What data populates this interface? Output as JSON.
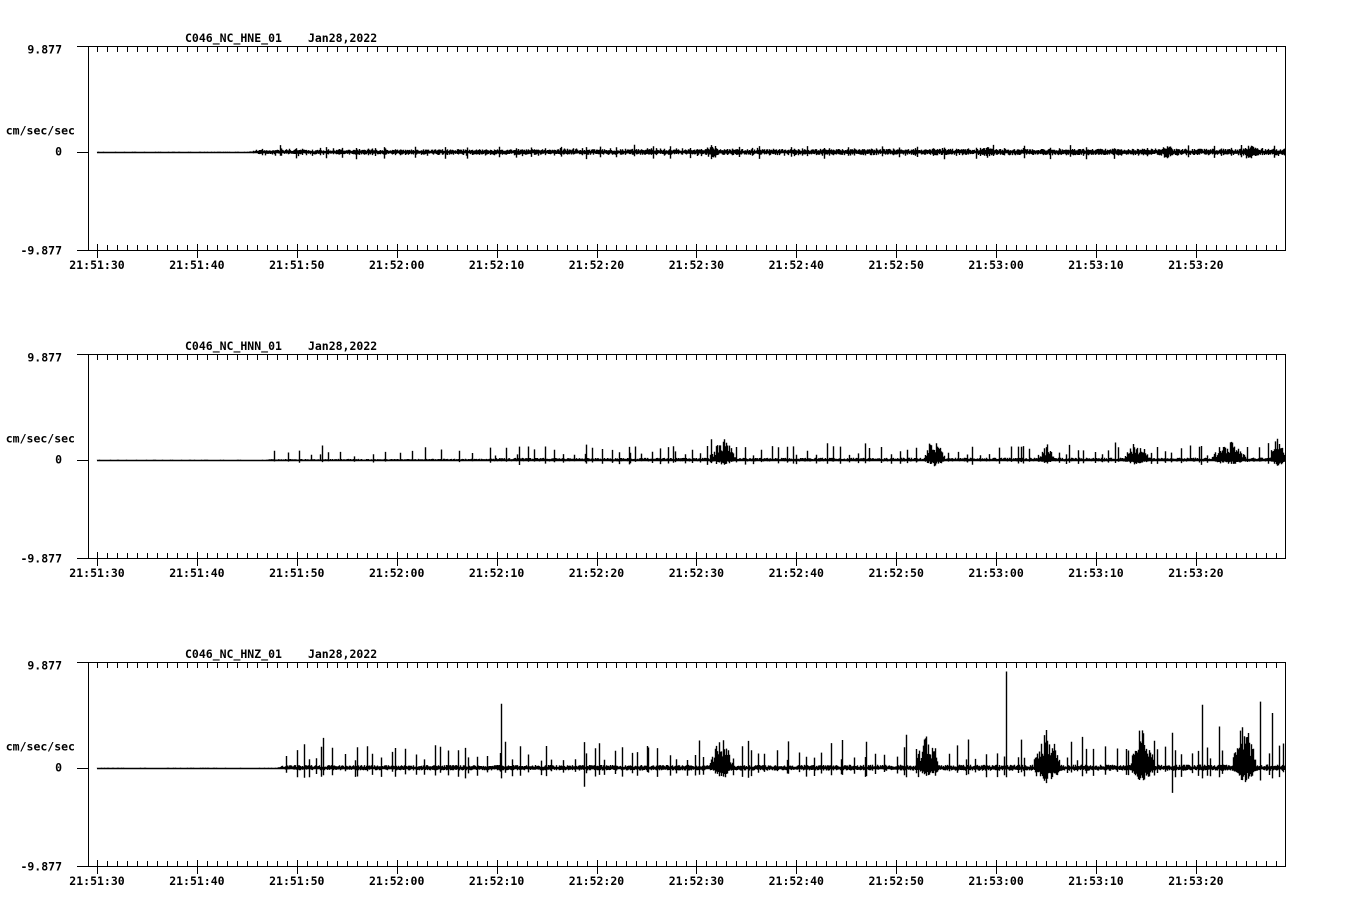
{
  "figure": {
    "bg": "#ffffff",
    "fg": "#000000",
    "description": "Three-channel strong-motion seismogram strip chart"
  },
  "chart_data": {
    "type": "line",
    "kind": "seismogram",
    "ylabel": "cm/sec/sec",
    "ylim": [
      -9.877,
      9.877
    ],
    "y_tick_labels": [
      "9.877",
      "0",
      "-9.877"
    ],
    "x_tick_labels": [
      "21:51:30",
      "21:51:40",
      "21:51:50",
      "21:52:00",
      "21:52:10",
      "21:52:20",
      "21:52:30",
      "21:52:40",
      "21:52:50",
      "21:53:00",
      "21:53:10",
      "21:53:20"
    ],
    "x_major_interval_sec": 10,
    "x_minor_interval_sec": 1,
    "grid": false,
    "legend": false,
    "panels": [
      {
        "title": "C046_NC_HNE_01",
        "date": "Jan28,2022",
        "units": "cm/sec/sec",
        "ymax_label": "9.877",
        "zero_label": "0",
        "ymin_label": "-9.877",
        "waveform": {
          "seed": 7,
          "trace_start_frac": 0.0075,
          "envelope": [
            [
              0,
              0.04,
              0.04
            ],
            [
              0.134,
              0.04,
              0.04
            ],
            [
              0.14,
              0.22,
              0.22
            ],
            [
              0.3,
              0.26,
              0.26
            ],
            [
              0.6,
              0.3,
              0.3
            ],
            [
              1,
              0.32,
              0.32
            ]
          ],
          "trains": [
            {
              "start": 0.145,
              "end": 1,
              "interval": 0.004,
              "up": [
                0.1,
                0.4
              ],
              "down": [
                0.1,
                0.4
              ]
            },
            {
              "start": 0.16,
              "end": 1,
              "interval": 0.02,
              "up": [
                0.35,
                0.7
              ],
              "down": [
                0.35,
                0.7
              ]
            }
          ],
          "bursts": [
            {
              "c": 0.52,
              "w": 0.015,
              "up": 0.7,
              "down": 0.7
            },
            {
              "c": 0.75,
              "w": 0.012,
              "up": 0.6,
              "down": 0.6
            },
            {
              "c": 0.9,
              "w": 0.015,
              "up": 0.7,
              "down": 0.7
            },
            {
              "c": 0.97,
              "w": 0.02,
              "up": 0.8,
              "down": 0.8
            }
          ],
          "events": []
        }
      },
      {
        "title": "C046_NC_HNN_01",
        "date": "Jan28,2022",
        "units": "cm/sec/sec",
        "ymax_label": "9.877",
        "zero_label": "0",
        "ymin_label": "-9.877",
        "waveform": {
          "seed": 11,
          "trace_start_frac": 0.0075,
          "envelope": [
            [
              0,
              0.04,
              0.04
            ],
            [
              0.147,
              0.04,
              0.04
            ],
            [
              0.152,
              0.1,
              0.08
            ],
            [
              0.33,
              0.12,
              0.1
            ],
            [
              0.34,
              0.2,
              0.14
            ],
            [
              1,
              0.24,
              0.16
            ]
          ],
          "trains": [
            {
              "start": 0.155,
              "end": 0.34,
              "interval": 0.011,
              "up": [
                0.3,
                1.3
              ],
              "down": [
                0.05,
                0.3
              ]
            },
            {
              "start": 0.34,
              "end": 1,
              "interval": 0.0075,
              "up": [
                0.4,
                1.4
              ],
              "down": [
                0.1,
                0.4
              ]
            },
            {
              "start": 0.36,
              "end": 1,
              "interval": 0.04,
              "up": [
                1.2,
                1.7
              ],
              "down": [
                0.2,
                0.5
              ]
            }
          ],
          "bursts": [
            {
              "c": 0.53,
              "w": 0.022,
              "up": 2.3,
              "down": 0.5
            },
            {
              "c": 0.706,
              "w": 0.018,
              "up": 2.4,
              "down": 0.6
            },
            {
              "c": 0.8,
              "w": 0.012,
              "up": 1.6,
              "down": 0.4
            },
            {
              "c": 0.875,
              "w": 0.022,
              "up": 1.9,
              "down": 0.5
            },
            {
              "c": 0.952,
              "w": 0.03,
              "up": 2.0,
              "down": 0.5
            },
            {
              "c": 0.993,
              "w": 0.012,
              "up": 2.3,
              "down": 0.6
            }
          ],
          "events": [
            {
              "f": 0.195,
              "up": 1.4,
              "down": 0.2
            },
            {
              "f": 0.52,
              "up": 2.0,
              "down": 0.3
            }
          ]
        }
      },
      {
        "title": "C046_NC_HNZ_01",
        "date": "Jan28,2022",
        "units": "cm/sec/sec",
        "ymax_label": "9.877",
        "zero_label": "0",
        "ymin_label": "-9.877",
        "waveform": {
          "seed": 23,
          "trace_start_frac": 0.0075,
          "envelope": [
            [
              0,
              0.04,
              0.04
            ],
            [
              0.157,
              0.04,
              0.04
            ],
            [
              0.163,
              0.28,
              0.22
            ],
            [
              0.5,
              0.3,
              0.25
            ],
            [
              1,
              0.34,
              0.28
            ]
          ],
          "trains": [
            {
              "start": 0.165,
              "end": 1,
              "interval": 0.008,
              "up": [
                0.7,
                2.2
              ],
              "down": [
                0.3,
                0.9
              ]
            },
            {
              "start": 0.18,
              "end": 1,
              "interval": 0.033,
              "up": [
                1.8,
                2.8
              ],
              "down": [
                0.4,
                1.0
              ]
            }
          ],
          "bursts": [
            {
              "c": 0.528,
              "w": 0.02,
              "up": 3.0,
              "down": 0.9
            },
            {
              "c": 0.7,
              "w": 0.02,
              "up": 3.4,
              "down": 1.1
            },
            {
              "c": 0.8,
              "w": 0.022,
              "up": 4.0,
              "down": 1.5
            },
            {
              "c": 0.88,
              "w": 0.02,
              "up": 4.3,
              "down": 1.5
            },
            {
              "c": 0.965,
              "w": 0.02,
              "up": 4.8,
              "down": 1.5
            }
          ],
          "events": [
            {
              "f": 0.196,
              "up": 2.9,
              "down": 0.7
            },
            {
              "f": 0.345,
              "up": 6.2,
              "down": 1.0
            },
            {
              "f": 0.414,
              "up": 2.5,
              "down": 1.8
            },
            {
              "f": 0.62,
              "up": 2.4,
              "down": 0.7
            },
            {
              "f": 0.683,
              "up": 3.2,
              "down": 0.9
            },
            {
              "f": 0.766,
              "up": 9.3,
              "down": 0.9
            },
            {
              "f": 0.83,
              "up": 3.0,
              "down": 0.8
            },
            {
              "f": 0.905,
              "up": 3.4,
              "down": 2.4
            },
            {
              "f": 0.93,
              "up": 6.1,
              "down": 1.0
            },
            {
              "f": 0.944,
              "up": 4.0,
              "down": 0.9
            },
            {
              "f": 0.978,
              "up": 6.4,
              "down": 1.2
            },
            {
              "f": 0.988,
              "up": 5.3,
              "down": 1.0
            }
          ]
        }
      }
    ]
  }
}
